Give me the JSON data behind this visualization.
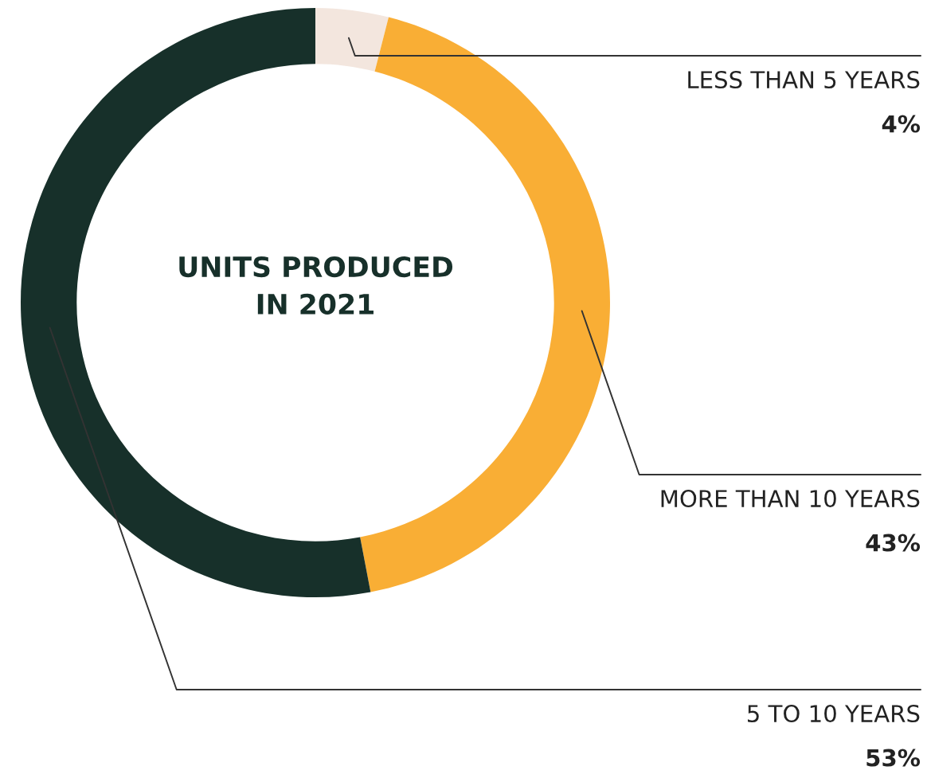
{
  "chart_data": {
    "type": "donut",
    "title": "UNITS PRODUCED\nIN 2021",
    "categories": [
      "LESS THAN 5 YEARS",
      "MORE THAN 10 YEARS",
      "5 TO 10 YEARS"
    ],
    "values": [
      4,
      43,
      53
    ],
    "value_labels": [
      "4%",
      "43%",
      "53%"
    ],
    "colors": [
      "#f3e6de",
      "#f9ae35",
      "#17302a"
    ],
    "legend": false
  }
}
